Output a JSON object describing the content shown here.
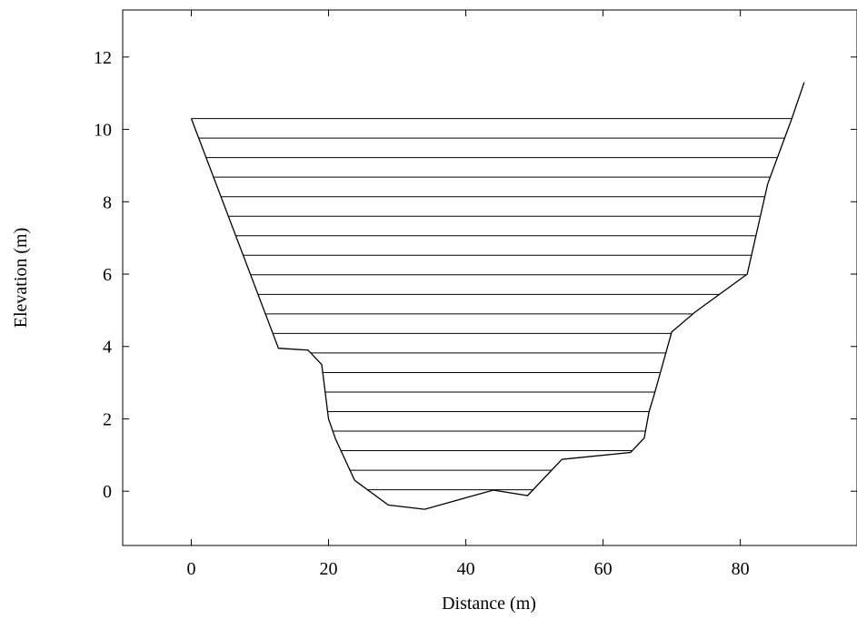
{
  "chart_data": {
    "type": "line",
    "title": "",
    "xlabel": "Distance (m)",
    "ylabel": "Elevation (m)",
    "xlim": [
      -10,
      97
    ],
    "ylim": [
      -1.5,
      13.3
    ],
    "x_ticks": [
      0,
      20,
      40,
      60,
      80
    ],
    "y_ticks": [
      0,
      2,
      4,
      6,
      8,
      10,
      12
    ],
    "grid": false,
    "legend": "none",
    "colors": {
      "line": "#000000",
      "background": "#ffffff"
    },
    "series": [
      {
        "x": [
          0,
          12.7,
          17,
          19,
          20,
          21,
          23.8,
          28.7,
          34,
          44,
          49,
          54,
          64,
          66,
          66.7,
          67.5,
          70,
          73.4,
          81,
          84,
          87.5,
          89.3
        ],
        "y": [
          10.3,
          3.95,
          3.9,
          3.5,
          2.0,
          1.45,
          0.3,
          -0.38,
          -0.5,
          0.03,
          -0.12,
          0.88,
          1.07,
          1.47,
          2.2,
          2.7,
          4.4,
          4.95,
          6.0,
          8.5,
          10.3,
          11.3
        ]
      }
    ],
    "hatch_levels": [
      10.3,
      9.76,
      9.22,
      8.68,
      8.14,
      7.6,
      7.06,
      6.52,
      5.98,
      5.44,
      4.9,
      4.36,
      3.82,
      3.28,
      2.74,
      2.2,
      1.66,
      1.12,
      0.58,
      0.04
    ]
  }
}
